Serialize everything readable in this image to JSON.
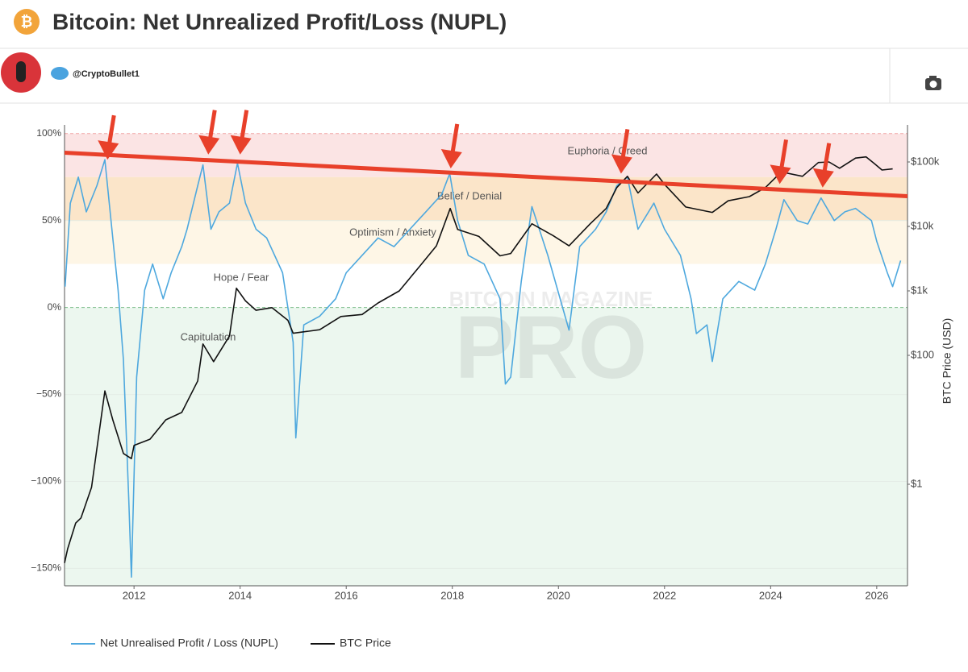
{
  "header": {
    "logo": "₿",
    "title": "Bitcoin: Net Unrealized Profit/Loss (NUPL)"
  },
  "author": {
    "handle": "@CryptoBullet1"
  },
  "chart_data": {
    "type": "line",
    "y2label": "BTC Price (USD)",
    "watermark": [
      "BITCOIN MAGAZINE",
      "PRO"
    ],
    "xlim": [
      2010.69,
      2026.58
    ],
    "xticks": [
      2012,
      2014,
      2016,
      2018,
      2020,
      2022,
      2024,
      2026
    ],
    "ylim": [
      -160,
      105
    ],
    "yticks": [
      {
        "value": 100,
        "label": "100%"
      },
      {
        "value": 50,
        "label": "50%"
      },
      {
        "value": 0,
        "label": "0%"
      },
      {
        "value": -50,
        "label": "−50%"
      },
      {
        "value": -100,
        "label": "−100%"
      },
      {
        "value": -150,
        "label": "−150%"
      }
    ],
    "y2lim": [
      0.0266,
      376000
    ],
    "y2scale": "log",
    "y2ticks": [
      {
        "value": 1,
        "label": "$1"
      },
      {
        "value": 100,
        "label": "$100"
      },
      {
        "value": 1000,
        "label": "$1k"
      },
      {
        "value": 10000,
        "label": "$10k"
      },
      {
        "value": 100000,
        "label": "$100k"
      }
    ],
    "grid": true,
    "zones": [
      {
        "label": "Euphoria / Greed",
        "from": 75,
        "to": 100,
        "color": "#fbe4e4"
      },
      {
        "label": "Belief / Denial",
        "from": 50,
        "to": 75,
        "color": "#fbe5c9"
      },
      {
        "label": "Optimism / Anxiety",
        "from": 25,
        "to": 50,
        "color": "#fef6e6"
      },
      {
        "label": "Hope / Fear",
        "from": 0,
        "to": 25,
        "color": "#ffffff"
      },
      {
        "label": "Capitulation",
        "from": -160,
        "to": 0,
        "color": "#ecf7ef"
      }
    ],
    "trend_line": {
      "color": "#e8402a",
      "x": [
        2010.69,
        2026.58
      ],
      "y": [
        89,
        64
      ]
    },
    "arrows": {
      "color": "#e8402a",
      "x": [
        2011.5,
        2013.4,
        2014.0,
        2017.97,
        2021.18,
        2024.17,
        2024.98
      ],
      "y": [
        85,
        88,
        88,
        80,
        77,
        71,
        69
      ]
    },
    "series": [
      {
        "name": "Net Unrealised Profit / Loss (NUPL)",
        "color": "#4ea8de",
        "axis": "y",
        "x": [
          2010.7,
          2010.8,
          2010.95,
          2011.1,
          2011.3,
          2011.45,
          2011.6,
          2011.7,
          2011.8,
          2011.9,
          2011.95,
          2012.05,
          2012.2,
          2012.35,
          2012.55,
          2012.7,
          2012.9,
          2013.0,
          2013.2,
          2013.3,
          2013.45,
          2013.6,
          2013.8,
          2013.95,
          2014.1,
          2014.3,
          2014.5,
          2014.8,
          2015.0,
          2015.05,
          2015.2,
          2015.5,
          2015.8,
          2016.0,
          2016.3,
          2016.6,
          2016.9,
          2017.2,
          2017.5,
          2017.8,
          2017.95,
          2018.1,
          2018.3,
          2018.6,
          2018.9,
          2019.0,
          2019.1,
          2019.3,
          2019.5,
          2019.8,
          2020.2,
          2020.4,
          2020.7,
          2020.9,
          2021.1,
          2021.3,
          2021.5,
          2021.8,
          2022.0,
          2022.3,
          2022.5,
          2022.6,
          2022.8,
          2022.9,
          2023.1,
          2023.4,
          2023.7,
          2023.9,
          2024.1,
          2024.25,
          2024.5,
          2024.7,
          2024.95,
          2025.2,
          2025.4,
          2025.6,
          2025.9,
          2026.0,
          2026.2,
          2026.3,
          2026.45
        ],
        "values": [
          12,
          60,
          75,
          55,
          70,
          85,
          40,
          10,
          -30,
          -110,
          -155,
          -40,
          10,
          25,
          5,
          20,
          35,
          45,
          70,
          82,
          45,
          55,
          60,
          83,
          60,
          45,
          40,
          20,
          -20,
          -75,
          -10,
          -5,
          5,
          20,
          30,
          40,
          35,
          45,
          55,
          65,
          77,
          50,
          30,
          25,
          5,
          -44,
          -40,
          15,
          58,
          30,
          -13,
          35,
          45,
          55,
          70,
          75,
          45,
          60,
          45,
          30,
          5,
          -15,
          -10,
          -31,
          5,
          15,
          10,
          25,
          45,
          62,
          50,
          48,
          63,
          50,
          55,
          57,
          50,
          38,
          20,
          12,
          27
        ]
      },
      {
        "name": "BTC Price",
        "color": "#111111",
        "axis": "y2",
        "x": [
          2010.69,
          2010.75,
          2010.9,
          2011.0,
          2011.2,
          2011.45,
          2011.6,
          2011.8,
          2011.95,
          2012.0,
          2012.3,
          2012.6,
          2012.9,
          2013.2,
          2013.3,
          2013.5,
          2013.8,
          2013.93,
          2014.1,
          2014.3,
          2014.6,
          2014.9,
          2015.0,
          2015.5,
          2015.9,
          2016.3,
          2016.6,
          2017.0,
          2017.4,
          2017.7,
          2017.96,
          2018.1,
          2018.5,
          2018.9,
          2019.1,
          2019.5,
          2019.9,
          2020.2,
          2020.6,
          2020.9,
          2021.1,
          2021.3,
          2021.5,
          2021.85,
          2022.0,
          2022.4,
          2022.9,
          2023.2,
          2023.6,
          2023.9,
          2024.2,
          2024.6,
          2024.9,
          2025.1,
          2025.3,
          2025.6,
          2025.8,
          2025.95,
          2026.1,
          2026.3
        ],
        "values": [
          0.06,
          0.1,
          0.25,
          0.3,
          0.9,
          28,
          10,
          3,
          2.5,
          4,
          5,
          10,
          13,
          40,
          150,
          80,
          200,
          1100,
          700,
          500,
          550,
          350,
          220,
          250,
          400,
          430,
          650,
          1000,
          2500,
          5000,
          19000,
          9000,
          7000,
          3500,
          3800,
          11000,
          7200,
          5000,
          11000,
          19000,
          40000,
          60000,
          33000,
          65000,
          45000,
          20000,
          16500,
          25000,
          29000,
          40000,
          70000,
          60000,
          98000,
          100000,
          80000,
          115000,
          120000,
          95000,
          75000,
          78000
        ]
      }
    ]
  }
}
